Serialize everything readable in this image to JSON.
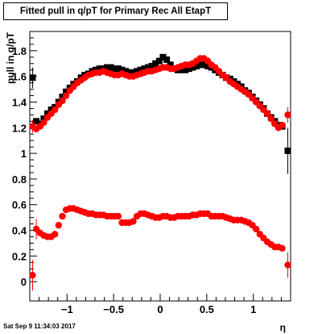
{
  "title": "Fitted pull in q/pT for Primary Rec All EtapT",
  "footer": "Sat Sep  9 11:34:03 2017",
  "chart_data": {
    "type": "scatter",
    "xlabel": "η",
    "ylabel": "pull in q/pT",
    "xlim": [
      -1.4,
      1.4
    ],
    "ylim": [
      -0.15,
      1.95
    ],
    "x_ticks": [
      -1,
      -0.5,
      0,
      0.5,
      1
    ],
    "y_ticks": [
      0,
      0.2,
      0.4,
      0.6,
      0.8,
      1,
      1.2,
      1.4,
      1.6,
      1.8
    ],
    "x_tick_labels": [
      "−1",
      "−0.5",
      "0",
      "0.5",
      "1"
    ],
    "y_tick_labels": [
      "0",
      "0.2",
      "0.4",
      "0.6",
      "0.8",
      "1",
      "1.2",
      "1.4",
      "1.6",
      "1.8"
    ],
    "series": [
      {
        "marker": "square",
        "color": "#000000",
        "points": [
          [
            -1.37,
            1.59
          ],
          [
            -1.33,
            1.25
          ],
          [
            -1.29,
            1.23
          ],
          [
            -1.25,
            1.27
          ],
          [
            -1.21,
            1.31
          ],
          [
            -1.17,
            1.34
          ],
          [
            -1.13,
            1.36
          ],
          [
            -1.09,
            1.4
          ],
          [
            -1.05,
            1.44
          ],
          [
            -1.01,
            1.48
          ],
          [
            -0.97,
            1.51
          ],
          [
            -0.93,
            1.54
          ],
          [
            -0.89,
            1.56
          ],
          [
            -0.85,
            1.59
          ],
          [
            -0.81,
            1.61
          ],
          [
            -0.77,
            1.62
          ],
          [
            -0.73,
            1.64
          ],
          [
            -0.69,
            1.65
          ],
          [
            -0.65,
            1.66
          ],
          [
            -0.61,
            1.66
          ],
          [
            -0.57,
            1.67
          ],
          [
            -0.53,
            1.67
          ],
          [
            -0.49,
            1.66
          ],
          [
            -0.45,
            1.66
          ],
          [
            -0.41,
            1.65
          ],
          [
            -0.37,
            1.64
          ],
          [
            -0.33,
            1.63
          ],
          [
            -0.29,
            1.63
          ],
          [
            -0.25,
            1.64
          ],
          [
            -0.21,
            1.65
          ],
          [
            -0.17,
            1.66
          ],
          [
            -0.13,
            1.67
          ],
          [
            -0.09,
            1.68
          ],
          [
            -0.05,
            1.7
          ],
          [
            -0.01,
            1.72
          ],
          [
            0.03,
            1.75
          ],
          [
            0.07,
            1.73
          ],
          [
            0.11,
            1.69
          ],
          [
            0.15,
            1.66
          ],
          [
            0.19,
            1.65
          ],
          [
            0.23,
            1.65
          ],
          [
            0.27,
            1.65
          ],
          [
            0.31,
            1.66
          ],
          [
            0.35,
            1.67
          ],
          [
            0.39,
            1.68
          ],
          [
            0.43,
            1.69
          ],
          [
            0.47,
            1.69
          ],
          [
            0.51,
            1.68
          ],
          [
            0.55,
            1.67
          ],
          [
            0.59,
            1.65
          ],
          [
            0.63,
            1.63
          ],
          [
            0.67,
            1.61
          ],
          [
            0.71,
            1.59
          ],
          [
            0.75,
            1.58
          ],
          [
            0.79,
            1.56
          ],
          [
            0.83,
            1.54
          ],
          [
            0.87,
            1.52
          ],
          [
            0.91,
            1.49
          ],
          [
            0.95,
            1.47
          ],
          [
            0.99,
            1.44
          ],
          [
            1.03,
            1.41
          ],
          [
            1.07,
            1.38
          ],
          [
            1.11,
            1.35
          ],
          [
            1.15,
            1.31
          ],
          [
            1.19,
            1.28
          ],
          [
            1.23,
            1.25
          ],
          [
            1.27,
            1.22
          ],
          [
            1.31,
            1.21
          ],
          [
            1.37,
            1.02
          ]
        ],
        "errors": [
          [
            -1.37,
            0.08
          ],
          [
            1.37,
            0.18
          ]
        ]
      },
      {
        "marker": "circle",
        "color": "#ff0000",
        "points": [
          [
            -1.37,
            1.21
          ],
          [
            -1.33,
            1.19
          ],
          [
            -1.29,
            1.21
          ],
          [
            -1.25,
            1.24
          ],
          [
            -1.21,
            1.28
          ],
          [
            -1.17,
            1.31
          ],
          [
            -1.13,
            1.34
          ],
          [
            -1.09,
            1.38
          ],
          [
            -1.05,
            1.41
          ],
          [
            -1.01,
            1.45
          ],
          [
            -0.97,
            1.49
          ],
          [
            -0.93,
            1.52
          ],
          [
            -0.89,
            1.55
          ],
          [
            -0.85,
            1.57
          ],
          [
            -0.81,
            1.59
          ],
          [
            -0.77,
            1.61
          ],
          [
            -0.73,
            1.62
          ],
          [
            -0.69,
            1.63
          ],
          [
            -0.65,
            1.63
          ],
          [
            -0.61,
            1.64
          ],
          [
            -0.57,
            1.63
          ],
          [
            -0.53,
            1.62
          ],
          [
            -0.49,
            1.61
          ],
          [
            -0.45,
            1.61
          ],
          [
            -0.41,
            1.62
          ],
          [
            -0.37,
            1.61
          ],
          [
            -0.33,
            1.6
          ],
          [
            -0.29,
            1.6
          ],
          [
            -0.25,
            1.61
          ],
          [
            -0.21,
            1.62
          ],
          [
            -0.17,
            1.63
          ],
          [
            -0.13,
            1.64
          ],
          [
            -0.09,
            1.64
          ],
          [
            -0.05,
            1.65
          ],
          [
            -0.01,
            1.66
          ],
          [
            0.03,
            1.67
          ],
          [
            0.07,
            1.67
          ],
          [
            0.11,
            1.66
          ],
          [
            0.15,
            1.66
          ],
          [
            0.19,
            1.67
          ],
          [
            0.23,
            1.68
          ],
          [
            0.27,
            1.69
          ],
          [
            0.31,
            1.69
          ],
          [
            0.35,
            1.7
          ],
          [
            0.39,
            1.72
          ],
          [
            0.43,
            1.74
          ],
          [
            0.47,
            1.74
          ],
          [
            0.51,
            1.72
          ],
          [
            0.55,
            1.69
          ],
          [
            0.59,
            1.67
          ],
          [
            0.63,
            1.64
          ],
          [
            0.67,
            1.61
          ],
          [
            0.71,
            1.59
          ],
          [
            0.75,
            1.56
          ],
          [
            0.79,
            1.54
          ],
          [
            0.83,
            1.52
          ],
          [
            0.87,
            1.5
          ],
          [
            0.91,
            1.48
          ],
          [
            0.95,
            1.46
          ],
          [
            0.99,
            1.43
          ],
          [
            1.03,
            1.4
          ],
          [
            1.07,
            1.37
          ],
          [
            1.11,
            1.34
          ],
          [
            1.15,
            1.31
          ],
          [
            1.19,
            1.27
          ],
          [
            1.23,
            1.23
          ],
          [
            1.27,
            1.2
          ],
          [
            1.31,
            1.22
          ],
          [
            1.37,
            1.3
          ]
        ],
        "errors": [
          [
            -1.37,
            0.05
          ],
          [
            1.37,
            0.06
          ]
        ]
      },
      {
        "marker": "circle",
        "color": "#ff0000",
        "points": [
          [
            -1.37,
            0.05
          ],
          [
            -1.33,
            0.41
          ],
          [
            -1.29,
            0.38
          ],
          [
            -1.25,
            0.36
          ],
          [
            -1.21,
            0.35
          ],
          [
            -1.17,
            0.35
          ],
          [
            -1.13,
            0.37
          ],
          [
            -1.09,
            0.44
          ],
          [
            -1.05,
            0.51
          ],
          [
            -1.01,
            0.56
          ],
          [
            -0.97,
            0.57
          ],
          [
            -0.93,
            0.57
          ],
          [
            -0.89,
            0.56
          ],
          [
            -0.85,
            0.55
          ],
          [
            -0.81,
            0.54
          ],
          [
            -0.77,
            0.53
          ],
          [
            -0.73,
            0.53
          ],
          [
            -0.69,
            0.52
          ],
          [
            -0.65,
            0.52
          ],
          [
            -0.61,
            0.52
          ],
          [
            -0.57,
            0.51
          ],
          [
            -0.53,
            0.51
          ],
          [
            -0.49,
            0.51
          ],
          [
            -0.45,
            0.51
          ],
          [
            -0.41,
            0.46
          ],
          [
            -0.37,
            0.46
          ],
          [
            -0.33,
            0.46
          ],
          [
            -0.29,
            0.47
          ],
          [
            -0.25,
            0.51
          ],
          [
            -0.21,
            0.53
          ],
          [
            -0.17,
            0.53
          ],
          [
            -0.13,
            0.52
          ],
          [
            -0.09,
            0.51
          ],
          [
            -0.05,
            0.5
          ],
          [
            -0.01,
            0.5
          ],
          [
            0.03,
            0.51
          ],
          [
            0.07,
            0.51
          ],
          [
            0.11,
            0.5
          ],
          [
            0.15,
            0.5
          ],
          [
            0.19,
            0.51
          ],
          [
            0.23,
            0.51
          ],
          [
            0.27,
            0.51
          ],
          [
            0.31,
            0.51
          ],
          [
            0.35,
            0.52
          ],
          [
            0.39,
            0.52
          ],
          [
            0.43,
            0.53
          ],
          [
            0.47,
            0.53
          ],
          [
            0.51,
            0.53
          ],
          [
            0.55,
            0.51
          ],
          [
            0.59,
            0.51
          ],
          [
            0.63,
            0.51
          ],
          [
            0.67,
            0.51
          ],
          [
            0.71,
            0.5
          ],
          [
            0.75,
            0.49
          ],
          [
            0.79,
            0.48
          ],
          [
            0.83,
            0.48
          ],
          [
            0.87,
            0.48
          ],
          [
            0.91,
            0.47
          ],
          [
            0.95,
            0.46
          ],
          [
            0.99,
            0.44
          ],
          [
            1.03,
            0.41
          ],
          [
            1.07,
            0.37
          ],
          [
            1.11,
            0.34
          ],
          [
            1.15,
            0.31
          ],
          [
            1.19,
            0.29
          ],
          [
            1.23,
            0.27
          ],
          [
            1.27,
            0.27
          ],
          [
            1.31,
            0.26
          ],
          [
            1.37,
            0.13
          ]
        ],
        "errors": [
          [
            -1.37,
            0.12
          ],
          [
            -1.33,
            0.08
          ],
          [
            1.37,
            0.1
          ]
        ]
      }
    ]
  }
}
